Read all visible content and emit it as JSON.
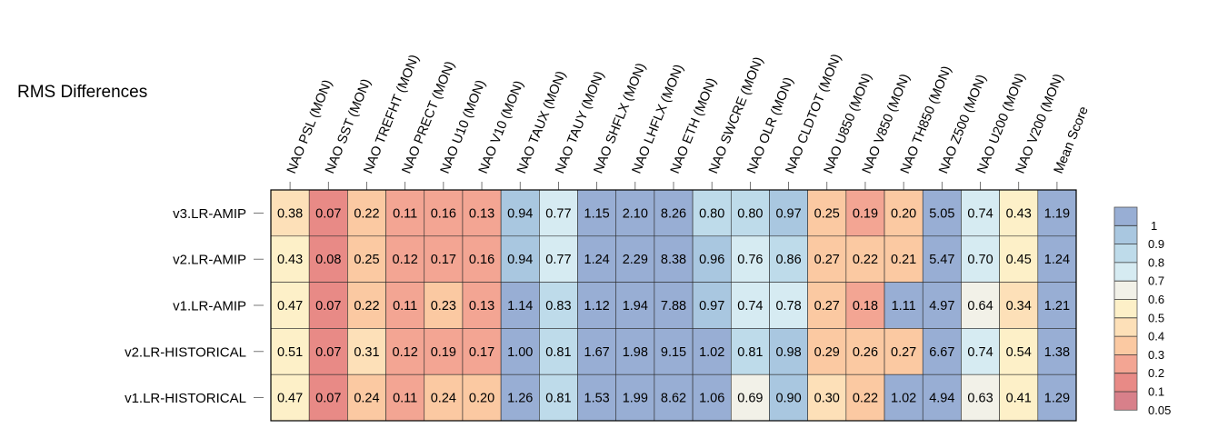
{
  "chart_data": {
    "type": "heatmap",
    "title": "RMS Differences",
    "columns": [
      "NAO PSL (MON)",
      "NAO SST (MON)",
      "NAO TREFHT (MON)",
      "NAO PRECT (MON)",
      "NAO U10 (MON)",
      "NAO V10 (MON)",
      "NAO TAUX (MON)",
      "NAO TAUY (MON)",
      "NAO SHFLX (MON)",
      "NAO LHFLX (MON)",
      "NAO ETH (MON)",
      "NAO SWCRE (MON)",
      "NAO OLR (MON)",
      "NAO CLDTOT (MON)",
      "NAO U850 (MON)",
      "NAO V850 (MON)",
      "NAO TH850 (MON)",
      "NAO Z500 (MON)",
      "NAO U200 (MON)",
      "NAO V200 (MON)",
      "Mean Score"
    ],
    "rows": [
      "v3.LR-AMIP",
      "v2.LR-AMIP",
      "v1.LR-AMIP",
      "v2.LR-HISTORICAL",
      "v1.LR-HISTORICAL"
    ],
    "values": [
      [
        0.38,
        0.07,
        0.22,
        0.11,
        0.16,
        0.13,
        0.94,
        0.77,
        1.15,
        2.1,
        8.26,
        0.8,
        0.8,
        0.97,
        0.25,
        0.19,
        0.2,
        5.05,
        0.74,
        0.43,
        1.19
      ],
      [
        0.43,
        0.08,
        0.25,
        0.12,
        0.17,
        0.16,
        0.94,
        0.77,
        1.24,
        2.29,
        8.38,
        0.96,
        0.76,
        0.86,
        0.27,
        0.22,
        0.21,
        5.47,
        0.7,
        0.45,
        1.24
      ],
      [
        0.47,
        0.07,
        0.22,
        0.11,
        0.23,
        0.13,
        1.14,
        0.83,
        1.12,
        1.94,
        7.88,
        0.97,
        0.74,
        0.78,
        0.27,
        0.18,
        1.11,
        4.97,
        0.64,
        0.34,
        1.21
      ],
      [
        0.51,
        0.07,
        0.31,
        0.12,
        0.19,
        0.17,
        1.0,
        0.81,
        1.67,
        1.98,
        9.15,
        1.02,
        0.81,
        0.98,
        0.29,
        0.26,
        0.27,
        6.67,
        0.74,
        0.54,
        1.38
      ],
      [
        0.47,
        0.07,
        0.24,
        0.11,
        0.24,
        0.2,
        1.26,
        0.81,
        1.53,
        1.99,
        8.62,
        1.06,
        0.69,
        0.9,
        0.3,
        0.22,
        1.02,
        4.94,
        0.63,
        0.41,
        1.29
      ]
    ],
    "value_labels": [
      [
        "0.38",
        "0.07",
        "0.22",
        "0.11",
        "0.16",
        "0.13",
        "0.94",
        "0.77",
        "1.15",
        "2.10",
        "8.26",
        "0.80",
        "0.80",
        "0.97",
        "0.25",
        "0.19",
        "0.20",
        "5.05",
        "0.74",
        "0.43",
        "1.19"
      ],
      [
        "0.43",
        "0.08",
        "0.25",
        "0.12",
        "0.17",
        "0.16",
        "0.94",
        "0.77",
        "1.24",
        "2.29",
        "8.38",
        "0.96",
        "0.76",
        "0.86",
        "0.27",
        "0.22",
        "0.21",
        "5.47",
        "0.70",
        "0.45",
        "1.24"
      ],
      [
        "0.47",
        "0.07",
        "0.22",
        "0.11",
        "0.23",
        "0.13",
        "1.14",
        "0.83",
        "1.12",
        "1.94",
        "7.88",
        "0.97",
        "0.74",
        "0.78",
        "0.27",
        "0.18",
        "1.11",
        "4.97",
        "0.64",
        "0.34",
        "1.21"
      ],
      [
        "0.51",
        "0.07",
        "0.31",
        "0.12",
        "0.19",
        "0.17",
        "1.00",
        "0.81",
        "1.67",
        "1.98",
        "9.15",
        "1.02",
        "0.81",
        "0.98",
        "0.29",
        "0.26",
        "0.27",
        "6.67",
        "0.74",
        "0.54",
        "1.38"
      ],
      [
        "0.47",
        "0.07",
        "0.24",
        "0.11",
        "0.24",
        "0.20",
        "1.26",
        "0.81",
        "1.53",
        "1.99",
        "8.62",
        "1.06",
        "0.69",
        "0.90",
        "0.30",
        "0.22",
        "1.02",
        "4.94",
        "0.63",
        "0.41",
        "1.29"
      ]
    ],
    "colorbar": {
      "ticks": [
        "1",
        "0.9",
        "0.8",
        "0.7",
        "0.6",
        "0.5",
        "0.4",
        "0.3",
        "0.2",
        "0.1",
        "0.05"
      ],
      "colors": [
        "#98aed4",
        "#a9c7e0",
        "#bedbea",
        "#d6ebf2",
        "#f2f1e8",
        "#fdf0c8",
        "#fde0b8",
        "#fbc9a2",
        "#f3a593",
        "#e88a86",
        "#d8808a"
      ],
      "legend_position": "right"
    },
    "grid": true
  }
}
